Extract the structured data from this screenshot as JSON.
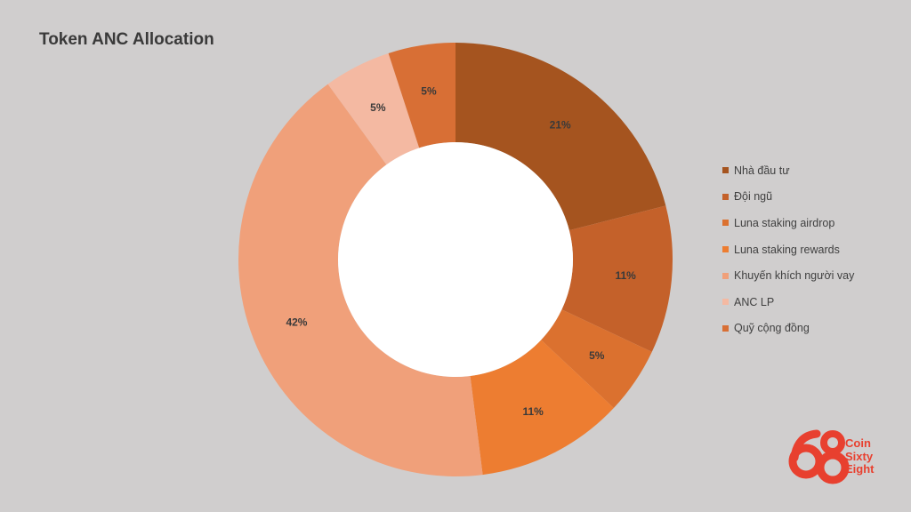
{
  "chart_data": {
    "type": "pie",
    "title": "Token ANC Allocation",
    "donut": true,
    "slices": [
      {
        "label": "Nhà đầu tư",
        "value": 21,
        "data_label": "21%",
        "color": "#a5541f"
      },
      {
        "label": "Đội ngũ",
        "value": 11,
        "data_label": "11%",
        "color": "#c4612a"
      },
      {
        "label": "Luna staking airdrop",
        "value": 5,
        "data_label": "5%",
        "color": "#db712f"
      },
      {
        "label": "Luna staking rewards",
        "value": 11,
        "data_label": "11%",
        "color": "#ed7d31"
      },
      {
        "label": "Khuyến khích người vay",
        "value": 42,
        "data_label": "42%",
        "color": "#f0a07a"
      },
      {
        "label": "ANC LP",
        "value": 5,
        "data_label": "5%",
        "color": "#f4b9a2"
      },
      {
        "label": "Quỹ cộng đồng",
        "value": 5,
        "data_label": "5%",
        "color": "#d86f35"
      }
    ],
    "legend_position": "right"
  },
  "logo": {
    "glyphs": "68",
    "lines": [
      "Coin",
      "Sixty",
      "Eight"
    ],
    "color": "#e8402f"
  }
}
